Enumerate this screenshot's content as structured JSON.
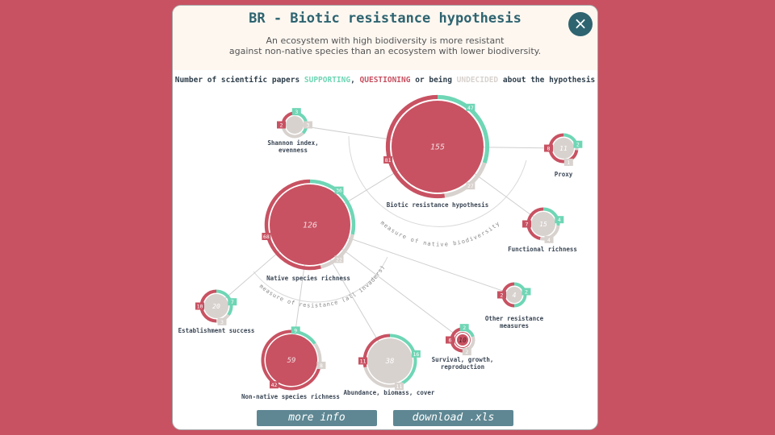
{
  "title": "BR - Biotic resistance hypothesis",
  "subtitle_line1": "An ecosystem with high biodiversity is more resistant",
  "subtitle_line2": "against non-native species than an ecosystem with lower biodiversity.",
  "legend": {
    "prefix": "Number of scientific papers ",
    "supporting": "SUPPORTING",
    "comma": ", ",
    "questioning": "QUESTIONING",
    "middle": " or being ",
    "undecided": "UNDECIDED",
    "suffix": " about the hypothesis"
  },
  "arc_labels": {
    "native": "measure of native biodiversity",
    "resistance": "measure of resistance (all invaders)"
  },
  "colors": {
    "supporting": "#6fd6b5",
    "questioning": "#c85262",
    "undecided": "#d8d2ce",
    "accent": "#2e6470"
  },
  "buttons": {
    "more_info": "more info",
    "download": "download .xls"
  },
  "close_icon": "×",
  "nodes": [
    {
      "id": "br",
      "label": [
        "Biotic resistance hypothesis"
      ],
      "total": 155,
      "supporting": 47,
      "questioning": 81,
      "undecided": 27,
      "main": true
    },
    {
      "id": "shannon",
      "label": [
        "Shannon index,",
        "evenness"
      ],
      "total": "",
      "supporting": 3,
      "questioning": 2,
      "undecided": 3
    },
    {
      "id": "proxy",
      "label": [
        "Proxy"
      ],
      "total": 11,
      "supporting": 2,
      "questioning": 8,
      "undecided": 1
    },
    {
      "id": "functional",
      "label": [
        "Functional richness"
      ],
      "total": 15,
      "supporting": 4,
      "questioning": 7,
      "undecided": 4
    },
    {
      "id": "native",
      "label": [
        "Native species richness"
      ],
      "total": 126,
      "supporting": 36,
      "questioning": 68,
      "undecided": 22,
      "main": true
    },
    {
      "id": "establishment",
      "label": [
        "Establishment success"
      ],
      "total": 20,
      "supporting": 7,
      "questioning": 10,
      "undecided": 3
    },
    {
      "id": "nonnative",
      "label": [
        "Non-native species richness"
      ],
      "total": 59,
      "supporting": 9,
      "questioning": 42,
      "undecided": 8,
      "main": true
    },
    {
      "id": "abundance",
      "label": [
        "Abundance, biomass, cover"
      ],
      "total": 38,
      "supporting": 16,
      "questioning": 11,
      "undecided": 11
    },
    {
      "id": "survival",
      "label": [
        "Survival, growth,",
        "reproduction"
      ],
      "total": 10,
      "supporting": 2,
      "questioning": 6,
      "undecided": 2,
      "main": true
    },
    {
      "id": "other",
      "label": [
        "Other resistance",
        "measures"
      ],
      "total": 4,
      "supporting": 2,
      "questioning": 2,
      "undecided": 0
    }
  ]
}
